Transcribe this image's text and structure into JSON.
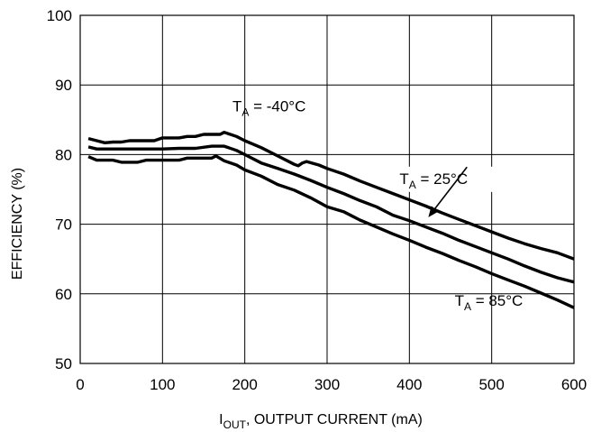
{
  "chart_data": {
    "type": "line",
    "xlabel": {
      "main": "I",
      "sub": "OUT",
      "rest": ", OUTPUT CURRENT (mA)"
    },
    "ylabel": "EFFICIENCY (%)",
    "xlim": [
      0,
      600
    ],
    "ylim": [
      50,
      100
    ],
    "x_ticks": [
      0,
      100,
      200,
      300,
      400,
      500,
      600
    ],
    "y_ticks": [
      50,
      60,
      70,
      80,
      90,
      100
    ],
    "grid": true,
    "series": [
      {
        "name": "TA = -40°C",
        "label": {
          "main": "T",
          "sub": "A",
          "rest": " = -40°C"
        },
        "x": [
          10,
          20,
          30,
          40,
          50,
          60,
          70,
          80,
          90,
          100,
          110,
          120,
          130,
          140,
          150,
          160,
          170,
          175,
          190,
          200,
          220,
          240,
          260,
          265,
          270,
          275,
          290,
          300,
          320,
          340,
          360,
          380,
          400,
          420,
          440,
          460,
          480,
          500,
          520,
          540,
          560,
          580,
          600
        ],
        "y": [
          82.3,
          82.0,
          81.7,
          81.8,
          81.8,
          82.0,
          82.0,
          82.0,
          82.0,
          82.4,
          82.4,
          82.4,
          82.6,
          82.6,
          82.9,
          82.9,
          82.9,
          83.2,
          82.6,
          82.0,
          81.0,
          79.8,
          78.6,
          78.4,
          78.8,
          79.0,
          78.5,
          78.0,
          77.2,
          76.2,
          75.3,
          74.4,
          73.5,
          72.6,
          71.6,
          70.7,
          69.8,
          68.9,
          68.0,
          67.2,
          66.5,
          65.9,
          65.0
        ]
      },
      {
        "name": "TA = 25°C",
        "label": {
          "main": "T",
          "sub": "A",
          "rest": " = 25°C"
        },
        "x": [
          10,
          20,
          40,
          60,
          80,
          100,
          120,
          140,
          160,
          175,
          190,
          200,
          220,
          240,
          260,
          280,
          300,
          320,
          340,
          360,
          380,
          400,
          420,
          440,
          460,
          480,
          500,
          520,
          540,
          560,
          580,
          600
        ],
        "y": [
          81.1,
          80.8,
          80.8,
          80.8,
          80.8,
          80.8,
          80.9,
          80.9,
          81.2,
          81.2,
          80.6,
          80.0,
          78.8,
          78.0,
          77.2,
          76.3,
          75.3,
          74.4,
          73.4,
          72.5,
          71.3,
          70.5,
          69.6,
          68.7,
          67.7,
          66.8,
          65.9,
          65.0,
          64.0,
          63.1,
          62.3,
          61.7
        ]
      },
      {
        "name": "TA = 85°C",
        "label": {
          "main": "T",
          "sub": "A",
          "rest": " = 85°C"
        },
        "x": [
          10,
          20,
          40,
          50,
          60,
          70,
          80,
          90,
          100,
          120,
          130,
          140,
          150,
          160,
          165,
          175,
          190,
          200,
          220,
          240,
          260,
          280,
          300,
          320,
          340,
          360,
          380,
          400,
          420,
          440,
          460,
          480,
          500,
          520,
          540,
          560,
          580,
          600
        ],
        "y": [
          79.7,
          79.2,
          79.2,
          78.9,
          78.9,
          78.9,
          79.2,
          79.2,
          79.2,
          79.2,
          79.5,
          79.5,
          79.5,
          79.5,
          79.8,
          79.1,
          78.5,
          77.8,
          76.9,
          75.7,
          74.9,
          73.8,
          72.5,
          71.8,
          70.6,
          69.6,
          68.6,
          67.7,
          66.7,
          65.8,
          64.8,
          63.9,
          62.9,
          62.0,
          61.1,
          60.1,
          59.1,
          58.0
        ]
      }
    ],
    "annotations": {
      "minus40": {
        "x": 185,
        "y": 86.2
      },
      "plus25": {
        "x": 388,
        "y": 75.8,
        "arrow_from": [
          470,
          78.2
        ],
        "arrow_to": [
          423,
          71.0
        ]
      },
      "plus85": {
        "x": 455,
        "y": 58.3
      }
    }
  }
}
